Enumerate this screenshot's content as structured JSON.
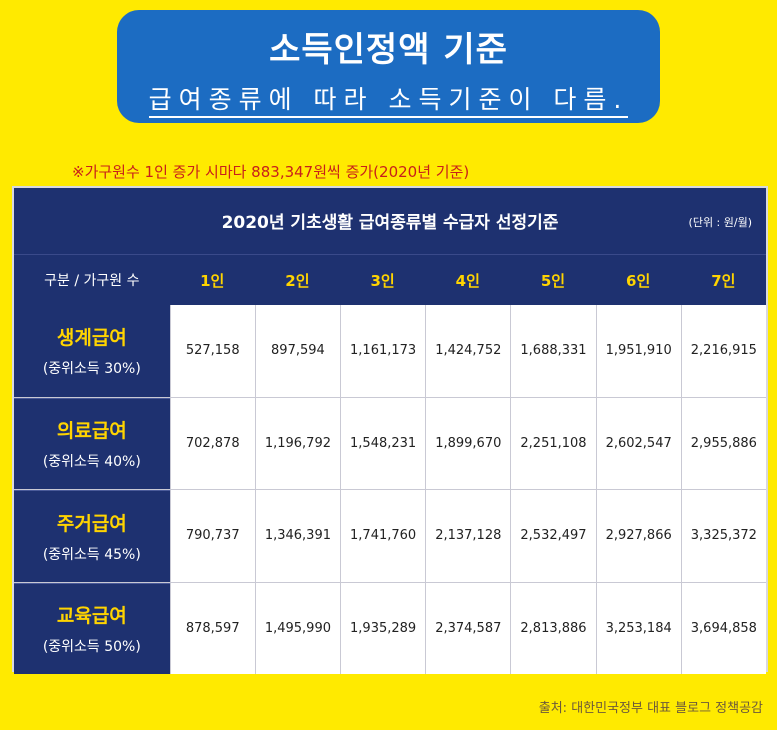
{
  "banner": {
    "title": "소득인정액 기준",
    "subtitle": "급여종류에 따라 소득기준이 다름."
  },
  "note": "※가구원수 1인 증가 시마다 883,347원씩 증가(2020년 기준)",
  "table": {
    "title": "2020년  기초생활  급여종류별  수급자  선정기준",
    "unit": "(단위 : 원/월)",
    "corner_header": "구분  /  가구원 수",
    "columns": [
      "1인",
      "2인",
      "3인",
      "4인",
      "5인",
      "6인",
      "7인"
    ],
    "rows": [
      {
        "name": "생계급여",
        "sub": "(중위소득  30%)",
        "values": [
          "527,158",
          "897,594",
          "1,161,173",
          "1,424,752",
          "1,688,331",
          "1,951,910",
          "2,216,915"
        ]
      },
      {
        "name": "의료급여",
        "sub": "(중위소득  40%)",
        "values": [
          "702,878",
          "1,196,792",
          "1,548,231",
          "1,899,670",
          "2,251,108",
          "2,602,547",
          "2,955,886"
        ]
      },
      {
        "name": "주거급여",
        "sub": "(중위소득  45%)",
        "values": [
          "790,737",
          "1,346,391",
          "1,741,760",
          "2,137,128",
          "2,532,497",
          "2,927,866",
          "3,325,372"
        ]
      },
      {
        "name": "교육급여",
        "sub": "(중위소득  50%)",
        "values": [
          "878,597",
          "1,495,990",
          "1,935,289",
          "2,374,587",
          "2,813,886",
          "3,253,184",
          "3,694,858"
        ]
      }
    ]
  },
  "source": "출처: 대한민국정부 대표 블로그 정책공감",
  "colors": {
    "background": "#ffea00",
    "banner": "#1c6cc2",
    "table_navy": "#1e3170",
    "header_accent": "#ffd400",
    "note_red": "#c8201a"
  }
}
